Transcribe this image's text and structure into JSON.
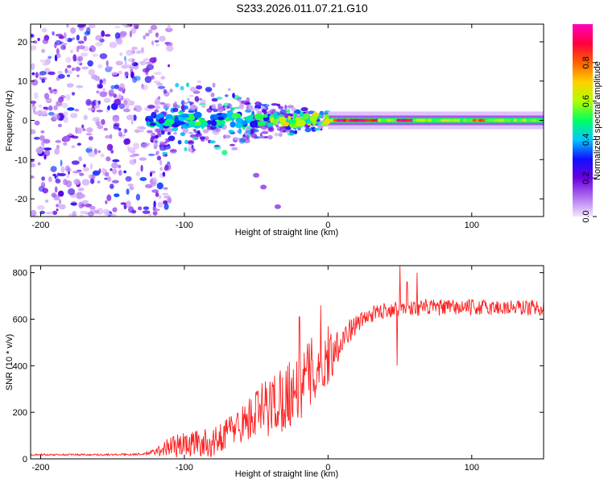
{
  "title": "S233.2026.011.07.21.G10",
  "chart_data": [
    {
      "type": "heatmap",
      "xlabel": "Height of straight line (km)",
      "ylabel": "Frequency (Hz)",
      "xlim": [
        -207,
        150
      ],
      "ylim": [
        -24.5,
        24.5
      ],
      "xticks": [
        -200,
        -100,
        0,
        100
      ],
      "yticks": [
        -20,
        -10,
        0,
        10,
        20
      ],
      "colorbar": {
        "label": "Normalized spectral amplitude",
        "range": [
          0,
          1
        ],
        "ticks": [
          0.0,
          0.2,
          0.4,
          0.6,
          0.8
        ],
        "tick_labels": [
          "0.0",
          "0.2",
          "0.4",
          "0.6",
          "0.8"
        ],
        "colormap": [
          "#f3e6ff",
          "#b070f0",
          "#6a00e0",
          "#1010ff",
          "#00c8ff",
          "#00ff60",
          "#b0ff00",
          "#ffd000",
          "#ff6000",
          "#ff0040",
          "#ff00c0"
        ]
      },
      "features": {
        "carrier_frequency_hz": 0,
        "scatter_region_km": [
          -207,
          -120
        ],
        "transition_region_km": [
          -120,
          0
        ],
        "clean_carrier_region_km": [
          0,
          150
        ],
        "carrier_peak_amplitude": 1.0,
        "lower_branch_points": [
          [
            -50,
            -14
          ],
          [
            -45,
            -17
          ],
          [
            -35,
            -22
          ]
        ]
      }
    },
    {
      "type": "line",
      "xlabel": "Height of straight line (km)",
      "ylabel": "SNR (10 * v/v)",
      "xlim": [
        -207,
        150
      ],
      "ylim": [
        0,
        830
      ],
      "xticks": [
        -200,
        -100,
        0,
        100
      ],
      "yticks": [
        0,
        200,
        400,
        600,
        800
      ],
      "series": [
        {
          "name": "SNR",
          "color": "#ff2020",
          "x": [
            -207,
            -190,
            -170,
            -150,
            -130,
            -120,
            -110,
            -100,
            -90,
            -80,
            -70,
            -60,
            -50,
            -40,
            -30,
            -20,
            -10,
            0,
            10,
            20,
            30,
            40,
            50,
            60,
            70,
            80,
            90,
            100,
            110,
            120,
            130,
            140,
            150
          ],
          "y": [
            18,
            18,
            18,
            18,
            20,
            30,
            55,
            60,
            70,
            65,
            120,
            150,
            190,
            230,
            270,
            320,
            380,
            430,
            520,
            580,
            620,
            640,
            650,
            650,
            650,
            650,
            650,
            650,
            650,
            650,
            650,
            650,
            650
          ],
          "noise_amplitude": [
            4,
            4,
            4,
            4,
            5,
            15,
            50,
            55,
            60,
            60,
            70,
            80,
            120,
            140,
            150,
            160,
            150,
            120,
            60,
            40,
            35,
            35,
            35,
            35,
            35,
            35,
            35,
            35,
            35,
            35,
            35,
            35,
            35
          ],
          "spikes": [
            [
              -20,
              610
            ],
            [
              -5,
              660
            ],
            [
              0,
              570
            ],
            [
              48,
              400
            ],
            [
              50,
              830
            ],
            [
              55,
              760
            ],
            [
              62,
              800
            ]
          ]
        }
      ]
    }
  ]
}
